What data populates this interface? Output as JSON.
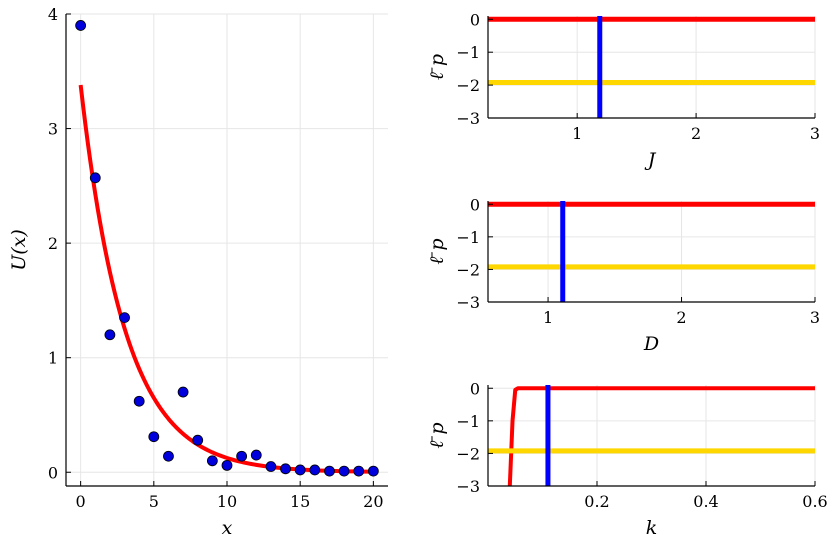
{
  "chart_data": [
    {
      "type": "scatter",
      "xlabel": "x",
      "ylabel": "U(x)",
      "xlim": [
        -1,
        21
      ],
      "ylim": [
        -0.12,
        4.0
      ],
      "xticks": [
        0,
        5,
        10,
        15,
        20
      ],
      "yticks": [
        0,
        1,
        2,
        3,
        4
      ],
      "grid": true,
      "series": [
        {
          "kind": "points",
          "color": "#0000dd",
          "x": [
            0,
            1,
            2,
            3,
            4,
            5,
            6,
            7,
            8,
            9,
            10,
            11,
            12,
            13,
            14,
            15,
            16,
            17,
            18,
            19,
            20
          ],
          "y": [
            3.9,
            2.57,
            1.2,
            1.35,
            0.62,
            0.31,
            0.14,
            0.7,
            0.28,
            0.1,
            0.06,
            0.14,
            0.15,
            0.05,
            0.03,
            0.02,
            0.02,
            0.01,
            0.01,
            0.01,
            0.01
          ]
        },
        {
          "kind": "line",
          "color": "#ff0000",
          "model": "exponential decay",
          "amplitude": 3.38,
          "rate": 0.33,
          "x_range": [
            0,
            20
          ]
        }
      ]
    },
    {
      "type": "line",
      "xlabel": "J",
      "ylabel": "ℓ̄ p",
      "xlim": [
        0.25,
        3.0
      ],
      "ylim": [
        -3,
        0.1
      ],
      "xticks": [
        1,
        2,
        3
      ],
      "yticks": [
        0,
        -1,
        -2,
        -3
      ],
      "grid": true,
      "series": [
        {
          "kind": "hline",
          "color": "#ff0000",
          "y": 0
        },
        {
          "kind": "hline",
          "color": "#ffd700",
          "y": -1.92
        },
        {
          "kind": "vline",
          "color": "#0000ff",
          "x": 1.19
        }
      ]
    },
    {
      "type": "line",
      "xlabel": "D",
      "ylabel": "ℓ̄ p",
      "xlim": [
        0.55,
        3.0
      ],
      "ylim": [
        -3,
        0.1
      ],
      "xticks": [
        1,
        2,
        3
      ],
      "yticks": [
        0,
        -1,
        -2,
        -3
      ],
      "grid": true,
      "series": [
        {
          "kind": "hline",
          "color": "#ff0000",
          "y": 0
        },
        {
          "kind": "hline",
          "color": "#ffd700",
          "y": -1.92
        },
        {
          "kind": "vline",
          "color": "#0000ff",
          "x": 1.11
        }
      ]
    },
    {
      "type": "line",
      "xlabel": "k",
      "ylabel": "ℓ̄ p",
      "xlim": [
        0.0,
        0.6
      ],
      "ylim": [
        -3,
        0.1
      ],
      "xticks": [
        0.2,
        0.4,
        0.6
      ],
      "yticks": [
        0,
        -1,
        -2,
        -3
      ],
      "grid": true,
      "series": [
        {
          "kind": "line",
          "color": "#ff0000",
          "x": [
            0.04,
            0.045,
            0.05,
            0.055,
            0.07,
            0.6
          ],
          "y": [
            -3.0,
            -1.0,
            -0.05,
            0.0,
            0.0,
            0.0
          ]
        },
        {
          "kind": "hline",
          "color": "#ffd700",
          "y": -1.92
        },
        {
          "kind": "vline",
          "color": "#0000ff",
          "x": 0.11
        }
      ]
    }
  ]
}
